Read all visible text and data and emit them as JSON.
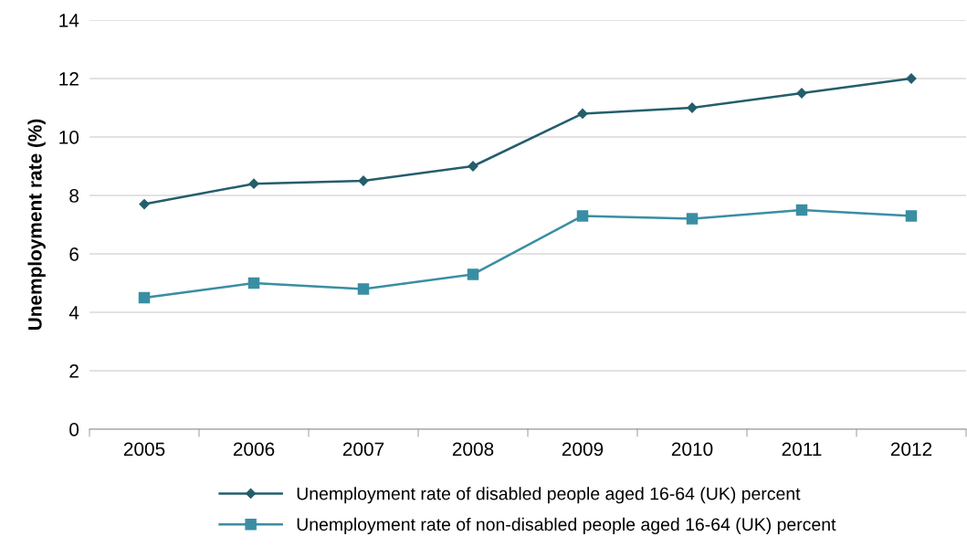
{
  "chart_data": {
    "type": "line",
    "ylabel": "Unemployment rate (%)",
    "categories": [
      "2005",
      "2006",
      "2007",
      "2008",
      "2009",
      "2010",
      "2011",
      "2012"
    ],
    "series": [
      {
        "name": "Unemployment rate of disabled people aged 16-64 (UK) percent",
        "color": "#245e6c",
        "marker": "diamond",
        "values": [
          7.7,
          8.4,
          8.5,
          9.0,
          10.8,
          11.0,
          11.5,
          12.0
        ]
      },
      {
        "name": "Unemployment rate of non-disabled people aged 16-64 (UK) percent",
        "color": "#3a8ea3",
        "marker": "square",
        "values": [
          4.5,
          5.0,
          4.8,
          5.3,
          7.3,
          7.2,
          7.5,
          7.3
        ]
      }
    ],
    "ylim": [
      0,
      14
    ],
    "yticks": [
      0,
      2,
      4,
      6,
      8,
      10,
      12,
      14
    ],
    "grid": "y",
    "legend": "bottom",
    "line_style": "solid"
  }
}
